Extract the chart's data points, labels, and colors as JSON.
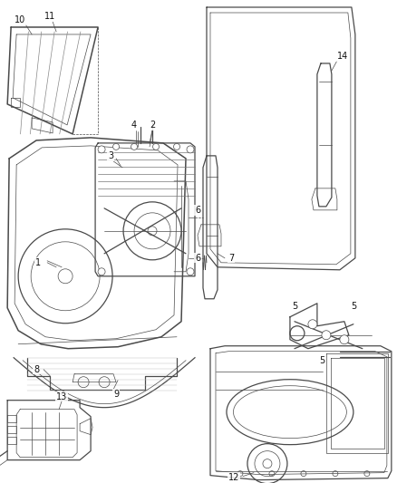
{
  "bg_color": "#ffffff",
  "line_color": "#4a4a4a",
  "lw_main": 0.9,
  "lw_thin": 0.5,
  "lw_thick": 1.1,
  "label_fontsize": 7.0,
  "label_color": "#111111",
  "figsize": [
    4.38,
    5.33
  ],
  "dpi": 100
}
